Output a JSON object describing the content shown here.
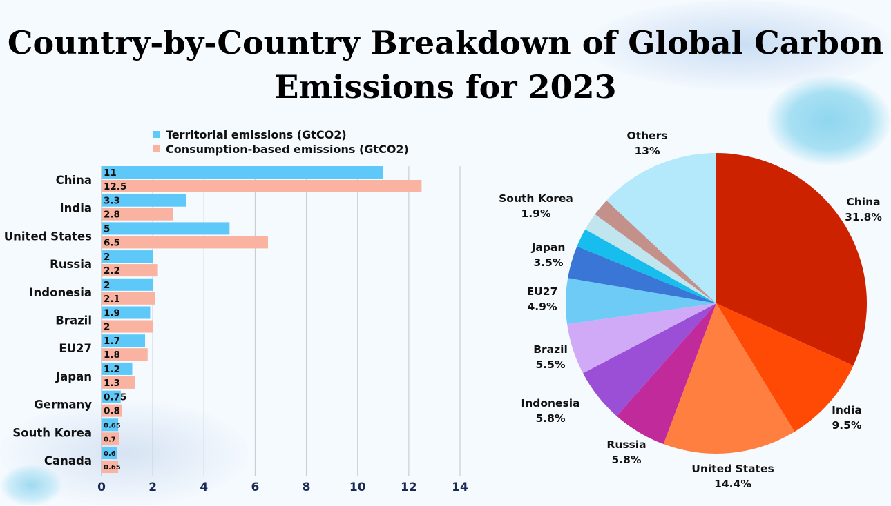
{
  "title": "Country-by-Country Breakdown of Global Carbon Emissions for 2023",
  "chart_data": [
    {
      "type": "bar",
      "orientation": "horizontal",
      "categories": [
        "China",
        "India",
        "United States",
        "Russia",
        "Indonesia",
        "Brazil",
        "EU27",
        "Japan",
        "Germany",
        "South Korea",
        "Canada"
      ],
      "series": [
        {
          "name": "Territorial emissions (GtCO2)",
          "color": "#5ec8f8",
          "values": [
            11,
            3.3,
            5,
            2,
            2,
            1.9,
            1.7,
            1.2,
            0.75,
            0.65,
            0.6
          ],
          "labels": [
            "11",
            "3.3",
            "5",
            "2",
            "2",
            "1.9",
            "1.7",
            "1.2",
            "0.75",
            "0.65",
            "0.6"
          ]
        },
        {
          "name": "Consumption-based emissions (GtCO2)",
          "color": "#f9b3a0",
          "values": [
            12.5,
            2.8,
            6.5,
            2.2,
            2.1,
            2,
            1.8,
            1.3,
            0.8,
            0.7,
            0.65
          ],
          "labels": [
            "12.5",
            "2.8",
            "6.5",
            "2.2",
            "2.1",
            "2",
            "1.8",
            "1.3",
            "0.8",
            "0.7",
            "0.65"
          ]
        }
      ],
      "xlim": [
        0,
        14
      ],
      "xticks": [
        "0",
        "2",
        "4",
        "6",
        "8",
        "10",
        "12",
        "14"
      ],
      "grid": true,
      "legend": "top"
    },
    {
      "type": "pie",
      "slices": [
        {
          "label": "China",
          "pct": "31.8%",
          "value": 31.8,
          "color": "#cc2200"
        },
        {
          "label": "India",
          "pct": "9.5%",
          "value": 9.5,
          "color": "#ff4a05"
        },
        {
          "label": "United States",
          "pct": "14.4%",
          "value": 14.4,
          "color": "#ff7f40"
        },
        {
          "label": "Russia",
          "pct": "5.8%",
          "value": 5.8,
          "color": "#c02a9a"
        },
        {
          "label": "Indonesia",
          "pct": "5.8%",
          "value": 5.8,
          "color": "#9a4fd6"
        },
        {
          "label": "Brazil",
          "pct": "5.5%",
          "value": 5.5,
          "color": "#d0aaf6"
        },
        {
          "label": "EU27",
          "pct": "4.9%",
          "value": 4.9,
          "color": "#6dcbf6"
        },
        {
          "label": "Japan",
          "pct": "3.5%",
          "value": 3.5,
          "color": "#3a76d6"
        },
        {
          "label": "",
          "pct": "",
          "value": 2.0,
          "color": "#17bdec"
        },
        {
          "label": "",
          "pct": "",
          "value": 1.9,
          "color": "#c0e5ee"
        },
        {
          "label": "South Korea",
          "pct": "1.9%",
          "value": 1.9,
          "color": "#c4918a"
        },
        {
          "label": "Others",
          "pct": "13%",
          "value": 13,
          "color": "#b4e8fb"
        }
      ]
    }
  ]
}
